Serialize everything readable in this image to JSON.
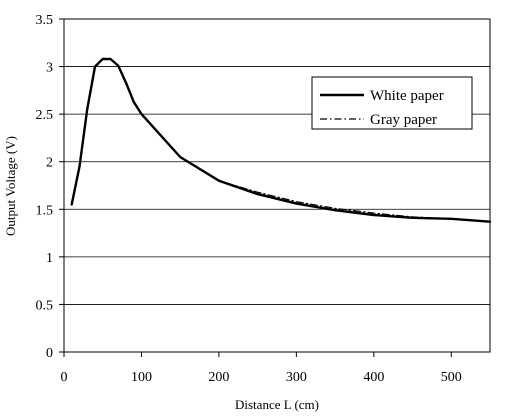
{
  "chart_data": {
    "type": "line",
    "title": "",
    "xlabel": "Distance L (cm)",
    "ylabel": "Output Voltage (V)",
    "xlim": [
      0,
      550
    ],
    "ylim": [
      0,
      3.5
    ],
    "xticks": [
      0,
      100,
      200,
      300,
      400,
      500
    ],
    "yticks": [
      0,
      0.5,
      1,
      1.5,
      2,
      2.5,
      3,
      3.5
    ],
    "xtick_labels": [
      "0",
      "100",
      "200",
      "300",
      "400",
      "500"
    ],
    "ytick_labels": [
      "0",
      "0.5",
      "1",
      "1.5",
      "2",
      "2.5",
      "3",
      "3.5"
    ],
    "grid": "horizontal",
    "legend_position": "upper-right",
    "series": [
      {
        "name": "White paper",
        "style": "solid",
        "color": "#000000",
        "x": [
          10,
          20,
          30,
          40,
          50,
          60,
          70,
          80,
          90,
          100,
          150,
          200,
          250,
          300,
          350,
          400,
          450,
          500,
          550
        ],
        "y": [
          1.55,
          1.95,
          2.55,
          3.0,
          3.08,
          3.08,
          3.01,
          2.83,
          2.63,
          2.5,
          2.05,
          1.8,
          1.66,
          1.56,
          1.49,
          1.44,
          1.41,
          1.4,
          1.37
        ]
      },
      {
        "name": "Gray paper",
        "style": "dash-dot",
        "color": "#000000",
        "x": [
          10,
          20,
          30,
          40,
          50,
          60,
          70,
          80,
          90,
          100,
          150,
          200,
          250,
          300,
          350,
          400,
          450,
          500,
          550
        ],
        "y": [
          1.55,
          1.95,
          2.55,
          3.0,
          3.08,
          3.08,
          3.01,
          2.83,
          2.63,
          2.5,
          2.05,
          1.8,
          1.68,
          1.58,
          1.51,
          1.46,
          1.42,
          1.4,
          1.37
        ]
      }
    ]
  }
}
